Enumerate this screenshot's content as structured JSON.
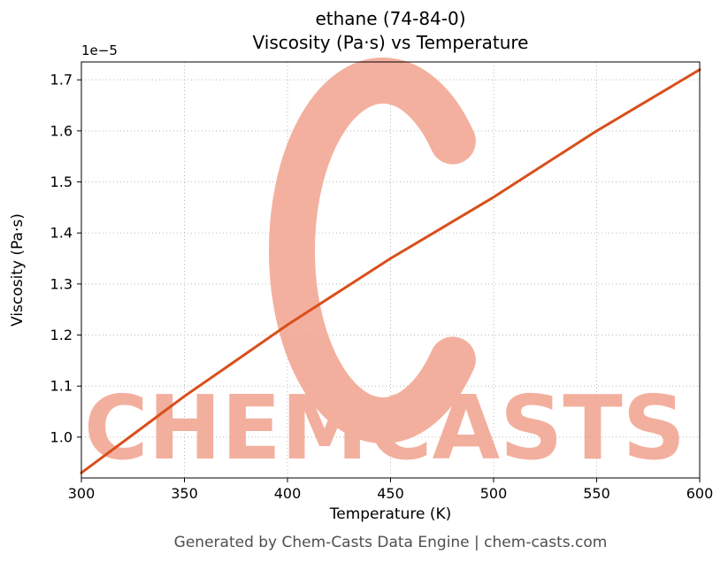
{
  "title": {
    "line1": "ethane (74-84-0)",
    "line2": "Viscosity (Pa·s) vs Temperature"
  },
  "footer": {
    "text": "Generated by Chem-Casts Data Engine | chem-casts.com"
  },
  "watermark": {
    "logo_letter": "C",
    "text": "CHEMCASTS",
    "color": "#f2a28e"
  },
  "colors": {
    "line": "#d94f1b",
    "grid": "#b8b8b8",
    "spine": "#000000",
    "tick_text": "#000000",
    "footer_text": "#4f4f4f",
    "background": "#ffffff"
  },
  "chart_data": {
    "type": "line",
    "title": "ethane (74-84-0)\nViscosity (Pa·s) vs Temperature",
    "xlabel": "Temperature (K)",
    "ylabel": "Viscosity (Pa·s)",
    "y_offset_label": "1e−5",
    "y_units": "Pa·s (values in multiples of 1e-5)",
    "x": [
      300,
      325,
      350,
      375,
      400,
      425,
      450,
      475,
      500,
      525,
      550,
      575,
      600
    ],
    "y_1e5": [
      0.93,
      1.005,
      1.08,
      1.15,
      1.22,
      1.285,
      1.35,
      1.41,
      1.47,
      1.535,
      1.6,
      1.66,
      1.72
    ],
    "xlim": [
      300,
      600
    ],
    "ylim_1e5": [
      0.92,
      1.735
    ],
    "xticks": [
      300,
      350,
      400,
      450,
      500,
      550,
      600
    ],
    "xtick_labels": [
      "300",
      "350",
      "400",
      "450",
      "500",
      "550",
      "600"
    ],
    "yticks_1e5": [
      1.0,
      1.1,
      1.2,
      1.3,
      1.4,
      1.5,
      1.6,
      1.7
    ],
    "ytick_labels": [
      "1.0",
      "1.1",
      "1.2",
      "1.3",
      "1.4",
      "1.5",
      "1.6",
      "1.7"
    ],
    "grid": "dotted",
    "legend": "none"
  }
}
